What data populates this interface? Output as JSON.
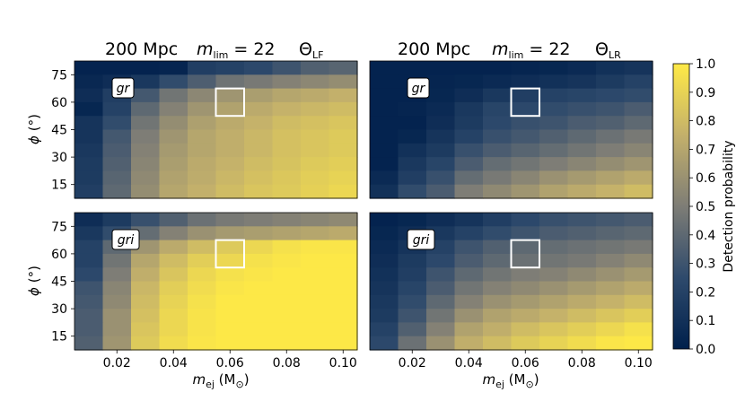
{
  "chart_data": {
    "type": "heatmap",
    "colorbar": {
      "label": "Detection probability",
      "range": [
        0.0,
        1.0
      ],
      "ticks": [
        "0.0",
        "0.1",
        "0.2",
        "0.3",
        "0.4",
        "0.5",
        "0.6",
        "0.7",
        "0.8",
        "0.9",
        "1.0"
      ]
    },
    "x": {
      "label_main": "m",
      "label_sub": "ej",
      "label_unit": "(M",
      "label_unit_sub": "⊙",
      "label_close": ")",
      "centers": [
        0.01,
        0.02,
        0.03,
        0.04,
        0.05,
        0.06,
        0.07,
        0.08,
        0.09,
        0.1
      ],
      "ticks": [
        "0.02",
        "0.04",
        "0.06",
        "0.08",
        "0.10"
      ],
      "tick_values": [
        0.02,
        0.04,
        0.06,
        0.08,
        0.1
      ],
      "range": [
        0.005,
        0.105
      ]
    },
    "y": {
      "label_main": "ϕ",
      "label_unit": "(°)",
      "centers": [
        15,
        30,
        45,
        60,
        75
      ],
      "ticks": [
        "75",
        "60",
        "45",
        "30",
        "15"
      ],
      "tick_values": [
        75,
        60,
        45,
        30,
        15
      ],
      "range": [
        7.5,
        82.5
      ],
      "rows_per_tick": 2
    },
    "highlight": {
      "m_ej": 0.06,
      "phi": 60
    },
    "panels": [
      {
        "title_distance": "200 Mpc",
        "title_mlim_main": "m",
        "title_mlim_sub": "lim",
        "title_mlim_value": " = 22",
        "title_theta_main": "Θ",
        "title_theta_sub": "LF",
        "filter": "gr",
        "values_top_to_bottom": [
          [
            0.02,
            0.02,
            0.02,
            0.03,
            0.18,
            0.2,
            0.24,
            0.3,
            0.36,
            0.38
          ],
          [
            0.05,
            0.08,
            0.14,
            0.26,
            0.35,
            0.45,
            0.48,
            0.52,
            0.55,
            0.58
          ],
          [
            0.08,
            0.18,
            0.32,
            0.46,
            0.55,
            0.62,
            0.66,
            0.7,
            0.72,
            0.75
          ],
          [
            0.04,
            0.2,
            0.4,
            0.52,
            0.62,
            0.68,
            0.72,
            0.76,
            0.78,
            0.8
          ],
          [
            0.12,
            0.26,
            0.46,
            0.58,
            0.67,
            0.72,
            0.76,
            0.8,
            0.82,
            0.84
          ],
          [
            0.12,
            0.32,
            0.5,
            0.62,
            0.7,
            0.74,
            0.78,
            0.82,
            0.84,
            0.86
          ],
          [
            0.14,
            0.34,
            0.52,
            0.64,
            0.7,
            0.74,
            0.78,
            0.82,
            0.84,
            0.86
          ],
          [
            0.16,
            0.36,
            0.54,
            0.66,
            0.72,
            0.76,
            0.8,
            0.83,
            0.86,
            0.88
          ],
          [
            0.16,
            0.38,
            0.56,
            0.68,
            0.73,
            0.78,
            0.82,
            0.85,
            0.88,
            0.9
          ],
          [
            0.18,
            0.4,
            0.58,
            0.7,
            0.75,
            0.8,
            0.84,
            0.86,
            0.89,
            0.92
          ]
        ]
      },
      {
        "title_distance": "200 Mpc",
        "title_mlim_main": "m",
        "title_mlim_sub": "lim",
        "title_mlim_value": " = 22",
        "title_theta_main": "Θ",
        "title_theta_sub": "LR",
        "filter": "gr",
        "values_top_to_bottom": [
          [
            0.02,
            0.02,
            0.02,
            0.02,
            0.02,
            0.03,
            0.04,
            0.06,
            0.1,
            0.12
          ],
          [
            0.02,
            0.02,
            0.03,
            0.04,
            0.06,
            0.08,
            0.1,
            0.12,
            0.16,
            0.2
          ],
          [
            0.02,
            0.02,
            0.04,
            0.08,
            0.14,
            0.18,
            0.2,
            0.22,
            0.24,
            0.26
          ],
          [
            0.02,
            0.03,
            0.06,
            0.14,
            0.22,
            0.24,
            0.26,
            0.28,
            0.3,
            0.34
          ],
          [
            0.02,
            0.02,
            0.08,
            0.16,
            0.24,
            0.28,
            0.3,
            0.34,
            0.36,
            0.4
          ],
          [
            0.02,
            0.04,
            0.12,
            0.2,
            0.28,
            0.32,
            0.36,
            0.4,
            0.44,
            0.48
          ],
          [
            0.02,
            0.1,
            0.16,
            0.28,
            0.34,
            0.38,
            0.42,
            0.46,
            0.5,
            0.54
          ],
          [
            0.02,
            0.14,
            0.22,
            0.34,
            0.42,
            0.46,
            0.5,
            0.54,
            0.58,
            0.62
          ],
          [
            0.06,
            0.18,
            0.28,
            0.42,
            0.48,
            0.54,
            0.6,
            0.64,
            0.68,
            0.72
          ],
          [
            0.1,
            0.26,
            0.34,
            0.5,
            0.56,
            0.62,
            0.68,
            0.72,
            0.76,
            0.8
          ]
        ]
      },
      {
        "title_distance": "",
        "filter": "gri",
        "values_top_to_bottom": [
          [
            0.08,
            0.16,
            0.28,
            0.36,
            0.44,
            0.48,
            0.5,
            0.52,
            0.54,
            0.56
          ],
          [
            0.14,
            0.26,
            0.42,
            0.52,
            0.6,
            0.64,
            0.66,
            0.68,
            0.7,
            0.72
          ],
          [
            0.2,
            0.4,
            0.62,
            0.72,
            0.8,
            0.86,
            0.92,
            0.96,
            0.98,
            0.98
          ],
          [
            0.2,
            0.46,
            0.7,
            0.8,
            0.88,
            0.92,
            0.96,
            0.98,
            0.99,
            0.99
          ],
          [
            0.24,
            0.5,
            0.74,
            0.84,
            0.92,
            0.96,
            0.98,
            0.99,
            0.99,
            0.99
          ],
          [
            0.3,
            0.54,
            0.78,
            0.88,
            0.94,
            0.98,
            0.99,
            0.99,
            0.99,
            0.99
          ],
          [
            0.32,
            0.56,
            0.8,
            0.9,
            0.96,
            0.99,
            0.99,
            0.99,
            0.99,
            0.99
          ],
          [
            0.34,
            0.6,
            0.82,
            0.92,
            0.97,
            0.99,
            0.99,
            0.99,
            0.99,
            0.99
          ],
          [
            0.34,
            0.6,
            0.84,
            0.92,
            0.97,
            0.99,
            0.99,
            0.99,
            0.99,
            0.99
          ],
          [
            0.36,
            0.62,
            0.86,
            0.94,
            0.98,
            0.99,
            0.99,
            0.99,
            0.99,
            0.99
          ]
        ]
      },
      {
        "title_distance": "",
        "filter": "gri",
        "values_top_to_bottom": [
          [
            0.02,
            0.04,
            0.08,
            0.12,
            0.18,
            0.24,
            0.28,
            0.3,
            0.32,
            0.34
          ],
          [
            0.04,
            0.08,
            0.14,
            0.2,
            0.26,
            0.3,
            0.34,
            0.36,
            0.38,
            0.4
          ],
          [
            0.06,
            0.12,
            0.2,
            0.3,
            0.36,
            0.4,
            0.42,
            0.44,
            0.46,
            0.48
          ],
          [
            0.08,
            0.16,
            0.24,
            0.34,
            0.4,
            0.44,
            0.46,
            0.48,
            0.52,
            0.56
          ],
          [
            0.1,
            0.18,
            0.3,
            0.4,
            0.46,
            0.5,
            0.52,
            0.56,
            0.6,
            0.64
          ],
          [
            0.12,
            0.22,
            0.34,
            0.46,
            0.52,
            0.56,
            0.6,
            0.64,
            0.68,
            0.72
          ],
          [
            0.14,
            0.26,
            0.4,
            0.52,
            0.6,
            0.64,
            0.68,
            0.72,
            0.76,
            0.8
          ],
          [
            0.16,
            0.3,
            0.46,
            0.6,
            0.68,
            0.72,
            0.76,
            0.8,
            0.84,
            0.88
          ],
          [
            0.2,
            0.36,
            0.52,
            0.68,
            0.74,
            0.8,
            0.84,
            0.88,
            0.92,
            0.96
          ],
          [
            0.24,
            0.44,
            0.6,
            0.74,
            0.8,
            0.86,
            0.9,
            0.94,
            0.98,
            0.99
          ]
        ]
      }
    ]
  }
}
